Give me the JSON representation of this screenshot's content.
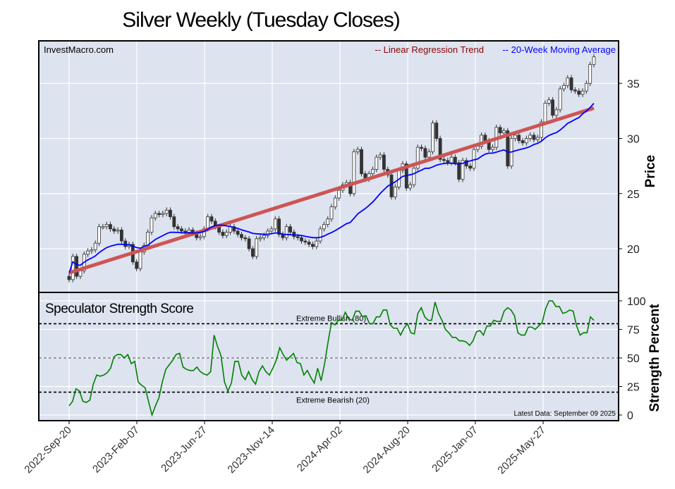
{
  "chart_data": [
    {
      "type": "candlestick",
      "title": "Silver Weekly (Tuesday Closes)",
      "watermark": "InvestMacro.com",
      "ylabel": "Price",
      "ylim": [
        16,
        38
      ],
      "yticks": [
        20,
        25,
        30,
        35
      ],
      "grid": true,
      "legend_placement": "top-right",
      "legend": [
        {
          "label": "-- Linear Regression Trend",
          "color": "#8b0000"
        },
        {
          "label": "-- 20-Week Moving Average",
          "color": "#0000ff"
        }
      ],
      "series_colors": {
        "trend": "#cd5555",
        "moving_average": "#0000ff",
        "up_candle": "#ffffff",
        "down_candle": "#333333"
      },
      "closes": [
        17.2,
        19.3,
        17.5,
        18.0,
        19.5,
        19.8,
        19.9,
        20.5,
        22.0,
        22.0,
        22.2,
        21.8,
        21.6,
        21.7,
        20.7,
        20.2,
        20.4,
        18.8,
        18.2,
        19.7,
        20.3,
        21.5,
        22.8,
        23.2,
        23.1,
        23.2,
        23.5,
        22.9,
        22.0,
        21.8,
        21.6,
        21.5,
        21.7,
        21.4,
        21.0,
        21.1,
        21.8,
        22.9,
        22.5,
        22.0,
        21.5,
        21.2,
        21.5,
        22.0,
        21.6,
        21.3,
        21.0,
        20.9,
        20.0,
        19.3,
        20.9,
        21.0,
        21.2,
        21.6,
        21.8,
        22.7,
        21.3,
        21.0,
        22.0,
        21.5,
        21.1,
        21.0,
        20.7,
        20.6,
        20.4,
        20.2,
        20.7,
        21.8,
        22.2,
        22.7,
        23.8,
        24.6,
        25.3,
        25.8,
        26.0,
        25.0,
        28.8,
        29.0,
        26.8,
        26.3,
        26.8,
        27.2,
        28.3,
        28.5,
        27.2,
        26.7,
        24.7,
        25.6,
        27.1,
        27.7,
        25.5,
        25.8,
        27.3,
        29.2,
        29.1,
        28.3,
        28.8,
        31.4,
        30.0,
        28.1,
        28.0,
        27.8,
        28.3,
        27.8,
        26.3,
        28.0,
        27.5,
        27.3,
        29.0,
        29.3,
        30.3,
        29.8,
        29.0,
        29.2,
        31.0,
        30.5,
        30.7,
        27.5,
        30.0,
        30.3,
        29.8,
        29.6,
        30.0,
        30.3,
        29.9,
        30.1,
        31.5,
        33.2,
        33.5,
        32.1,
        32.6,
        34.5,
        34.8,
        35.5,
        34.4,
        34.3,
        34.0,
        34.3,
        35.0,
        36.7,
        37.4
      ]
    },
    {
      "type": "line",
      "title": "Speculator Strength Score",
      "ylabel": "Strength Percent",
      "ylim": [
        0,
        100
      ],
      "yticks": [
        0,
        25,
        50,
        75,
        100
      ],
      "grid": true,
      "line_color": "#008000",
      "reference_lines": [
        {
          "value": 80,
          "label": "Extreme Bullish (80)",
          "color": "#000000"
        },
        {
          "value": 50,
          "label": "",
          "color": "#808080"
        },
        {
          "value": 20,
          "label": "Extreme Bearish (20)",
          "color": "#000000"
        }
      ],
      "annotation": "Latest Data: September 09 2025",
      "values": [
        8,
        12,
        23,
        21,
        12,
        11,
        13,
        27,
        35,
        34,
        35,
        37,
        41,
        51,
        53,
        53,
        50,
        53,
        45,
        47,
        29,
        26,
        24,
        12,
        0,
        8,
        15,
        29,
        40,
        44,
        48,
        53,
        54,
        42,
        40,
        39,
        39,
        42,
        38,
        36,
        35,
        38,
        70,
        60,
        52,
        29,
        21,
        28,
        47,
        47,
        35,
        31,
        38,
        31,
        27,
        38,
        43,
        38,
        35,
        41,
        48,
        59,
        53,
        48,
        51,
        54,
        46,
        45,
        35,
        39,
        33,
        28,
        41,
        30,
        45,
        64,
        81,
        79,
        83,
        83,
        90,
        84,
        83,
        91,
        91,
        86,
        87,
        80,
        80,
        86,
        86,
        92,
        92,
        79,
        76,
        76,
        70,
        76,
        80,
        72,
        71,
        89,
        94,
        86,
        83,
        83,
        99,
        89,
        83,
        75,
        72,
        68,
        68,
        65,
        65,
        64,
        61,
        65,
        73,
        74,
        70,
        78,
        78,
        83,
        82,
        82,
        91,
        94,
        92,
        87,
        72,
        70,
        70,
        77,
        77,
        75,
        78,
        81,
        93,
        100,
        100,
        95,
        95,
        89,
        90,
        92,
        91,
        78,
        70,
        72,
        72,
        86,
        83
      ]
    }
  ],
  "x_axis": {
    "tick_labels": [
      "2022-Sep-20",
      "2023-Feb-07",
      "2023-Jun-27",
      "2023-Nov-14",
      "2024-Apr-02",
      "2024-Aug-20",
      "2025-Jan-07",
      "2025-May-27"
    ],
    "frequency": "weekly"
  }
}
